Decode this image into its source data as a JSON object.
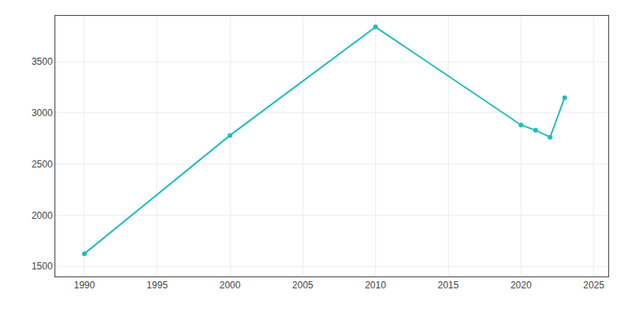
{
  "chart_data": {
    "type": "line",
    "x": [
      1990,
      2000,
      2010,
      2020,
      2021,
      2022,
      2023
    ],
    "values": [
      1623,
      2780,
      3841,
      2882,
      2831,
      2762,
      3149
    ],
    "color": "#22BBBB",
    "marker": "circle",
    "xlim": [
      1988,
      2026
    ],
    "xticks": [
      1990,
      1995,
      2000,
      2005,
      2010,
      2015,
      2020,
      2025
    ],
    "ylim": [
      1400,
      3950
    ],
    "yticks": [
      1500,
      2000,
      2500,
      3000,
      3500
    ],
    "grid": true
  }
}
